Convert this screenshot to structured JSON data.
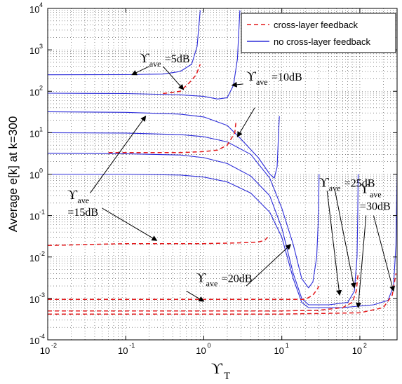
{
  "chart_data": {
    "type": "line",
    "xscale": "log",
    "yscale": "log",
    "xlim": [
      0.01,
      300
    ],
    "ylim": [
      0.0001,
      10000
    ],
    "grid": true,
    "legend_placement": "top-right",
    "xlabel": {
      "symbol": "ϒ",
      "sub": "T"
    },
    "ylabel": "Average e[k] at k=300",
    "x_ticks": [
      {
        "value": 0.01,
        "base": "10",
        "exp": "-2"
      },
      {
        "value": 0.1,
        "base": "10",
        "exp": "-1"
      },
      {
        "value": 1,
        "base": "10",
        "exp": "0"
      },
      {
        "value": 10,
        "base": "10",
        "exp": "1"
      },
      {
        "value": 100,
        "base": "10",
        "exp": "2"
      }
    ],
    "y_ticks": [
      {
        "value": 0.0001,
        "base": "10",
        "exp": "-4"
      },
      {
        "value": 0.001,
        "base": "10",
        "exp": "-3"
      },
      {
        "value": 0.01,
        "base": "10",
        "exp": "-2"
      },
      {
        "value": 0.1,
        "base": "10",
        "exp": "-1"
      },
      {
        "value": 1,
        "base": "10",
        "exp": "0"
      },
      {
        "value": 10,
        "base": "10",
        "exp": "1"
      },
      {
        "value": 100,
        "base": "10",
        "exp": "2"
      },
      {
        "value": 1000,
        "base": "10",
        "exp": "3"
      },
      {
        "value": 10000,
        "base": "10",
        "exp": "4"
      }
    ],
    "legend": [
      {
        "name": "cross-layer feedback",
        "style": "dashed",
        "color": "#e31a1c"
      },
      {
        "name": "no cross-layer feedback",
        "style": "solid",
        "color": "#2b2bd9"
      }
    ],
    "series": [
      {
        "name": "no cross-layer feedback",
        "group": "5dB",
        "color": "#2b2bd9",
        "style": "solid",
        "points": [
          [
            0.01,
            250
          ],
          [
            0.1,
            252
          ],
          [
            0.3,
            260
          ],
          [
            0.5,
            300
          ],
          [
            0.7,
            450
          ],
          [
            0.82,
            1200
          ],
          [
            0.9,
            9000
          ]
        ]
      },
      {
        "name": "no cross-layer feedback",
        "group": "10dB",
        "color": "#2b2bd9",
        "style": "solid",
        "points": [
          [
            0.01,
            90
          ],
          [
            0.1,
            88
          ],
          [
            0.5,
            82
          ],
          [
            1,
            75
          ],
          [
            1.5,
            65
          ],
          [
            2,
            70
          ],
          [
            2.4,
            140
          ],
          [
            2.7,
            600
          ],
          [
            2.9,
            9000
          ]
        ]
      },
      {
        "name": "no cross-layer feedback",
        "group": "15dB",
        "color": "#2b2bd9",
        "style": "solid",
        "points": [
          [
            0.01,
            32
          ],
          [
            0.1,
            31
          ],
          [
            0.5,
            28
          ],
          [
            1,
            24
          ],
          [
            2,
            15
          ],
          [
            3,
            7
          ],
          [
            5,
            2.5
          ],
          [
            7,
            1
          ],
          [
            8,
            0.8
          ],
          [
            8.7,
            1.5
          ],
          [
            9.1,
            10
          ],
          [
            9.3,
            25
          ]
        ]
      },
      {
        "name": "no cross-layer feedback",
        "group": "20dB",
        "color": "#2b2bd9",
        "style": "solid",
        "points": [
          [
            0.01,
            10
          ],
          [
            0.1,
            9.8
          ],
          [
            0.5,
            9
          ],
          [
            1,
            8
          ],
          [
            2,
            6
          ],
          [
            4,
            3
          ],
          [
            7,
            0.8
          ],
          [
            10,
            0.15
          ],
          [
            14,
            0.02
          ],
          [
            18,
            0.003
          ],
          [
            22,
            0.0018
          ],
          [
            25,
            0.0025
          ],
          [
            28,
            0.01
          ],
          [
            29.5,
            0.1
          ],
          [
            30,
            1
          ]
        ]
      },
      {
        "name": "no cross-layer feedback",
        "group": "25dB",
        "color": "#2b2bd9",
        "style": "solid",
        "points": [
          [
            0.01,
            3.2
          ],
          [
            0.1,
            3.1
          ],
          [
            0.5,
            2.9
          ],
          [
            1,
            2.5
          ],
          [
            2,
            1.8
          ],
          [
            4,
            0.9
          ],
          [
            7,
            0.3
          ],
          [
            10,
            0.05
          ],
          [
            14,
            0.004
          ],
          [
            18,
            0.001
          ],
          [
            22,
            0.0007
          ],
          [
            40,
            0.0007
          ],
          [
            70,
            0.0008
          ],
          [
            85,
            0.0015
          ],
          [
            92,
            0.01
          ],
          [
            94,
            0.1
          ],
          [
            95,
            1
          ]
        ]
      },
      {
        "name": "no cross-layer feedback",
        "group": "30dB",
        "color": "#2b2bd9",
        "style": "solid",
        "points": [
          [
            0.01,
            1
          ],
          [
            0.1,
            1
          ],
          [
            0.5,
            0.95
          ],
          [
            1,
            0.85
          ],
          [
            2,
            0.65
          ],
          [
            4,
            0.35
          ],
          [
            7,
            0.12
          ],
          [
            10,
            0.03
          ],
          [
            14,
            0.003
          ],
          [
            18,
            0.0008
          ],
          [
            22,
            0.0006
          ],
          [
            60,
            0.0006
          ],
          [
            150,
            0.0007
          ],
          [
            230,
            0.0009
          ],
          [
            270,
            0.002
          ],
          [
            290,
            0.02
          ],
          [
            300,
            1
          ]
        ]
      },
      {
        "name": "cross-layer feedback",
        "group": "5dB",
        "color": "#e31a1c",
        "style": "dashed",
        "points": [
          [
            0.3,
            88
          ],
          [
            0.5,
            100
          ],
          [
            0.65,
            160
          ],
          [
            0.8,
            250
          ],
          [
            0.9,
            450
          ]
        ]
      },
      {
        "name": "cross-layer feedback",
        "group": "15dB",
        "color": "#e31a1c",
        "style": "dashed",
        "points": [
          [
            0.06,
            3.3
          ],
          [
            0.3,
            3.3
          ],
          [
            0.5,
            3.3
          ],
          [
            1,
            3.5
          ],
          [
            1.5,
            3.8
          ],
          [
            2,
            5
          ],
          [
            2.5,
            10
          ],
          [
            2.6,
            20
          ]
        ]
      },
      {
        "name": "cross-layer feedback",
        "group": "20dB",
        "color": "#e31a1c",
        "style": "dashed",
        "points": [
          [
            0.01,
            0.019
          ],
          [
            0.1,
            0.021
          ],
          [
            1,
            0.021
          ],
          [
            3,
            0.022
          ],
          [
            5,
            0.023
          ],
          [
            6,
            0.025
          ],
          [
            6.6,
            0.03
          ]
        ]
      },
      {
        "name": "cross-layer feedback",
        "group": "25dB",
        "color": "#e31a1c",
        "style": "dashed",
        "points": [
          [
            0.01,
            0.00095
          ],
          [
            0.1,
            0.00095
          ],
          [
            1,
            0.00095
          ],
          [
            10,
            0.00095
          ],
          [
            20,
            0.00095
          ],
          [
            25,
            0.0012
          ],
          [
            28,
            0.0016
          ],
          [
            30,
            0.002
          ]
        ]
      },
      {
        "name": "cross-layer feedback",
        "group": "30dB",
        "color": "#e31a1c",
        "style": "dashed",
        "points": [
          [
            0.01,
            0.0005
          ],
          [
            1,
            0.0005
          ],
          [
            10,
            0.0005
          ],
          [
            30,
            0.00052
          ],
          [
            60,
            0.0006
          ],
          [
            80,
            0.0008
          ],
          [
            90,
            0.0015
          ],
          [
            95,
            0.004
          ]
        ]
      },
      {
        "name": "cross-layer feedback",
        "group": "30dB-b",
        "color": "#e31a1c",
        "style": "dashed",
        "points": [
          [
            0.01,
            0.00042
          ],
          [
            1,
            0.00042
          ],
          [
            10,
            0.00042
          ],
          [
            100,
            0.00045
          ],
          [
            200,
            0.0006
          ],
          [
            260,
            0.0012
          ],
          [
            290,
            0.004
          ]
        ]
      }
    ],
    "annotations": [
      {
        "sym": "ϒ",
        "sub": "ave",
        "text": "=5dB",
        "pos": [
          0.15,
          500
        ],
        "arrows": [
          [
            [
              0.2,
              400
            ],
            [
              0.12,
              250
            ]
          ],
          [
            [
              0.3,
              400
            ],
            [
              0.55,
              110
            ]
          ]
        ]
      },
      {
        "sym": "ϒ",
        "sub": "ave",
        "text": "=10dB",
        "pos": [
          3.5,
          180
        ],
        "arrows": [
          [
            [
              3.2,
              150
            ],
            [
              2.3,
              140
            ]
          ],
          [
            [
              4.5,
              40
            ],
            [
              2.7,
              8
            ]
          ]
        ]
      },
      {
        "sym": "ϒ",
        "sub": "ave",
        "text": "",
        "text2": "=15dB",
        "pos": [
          0.018,
          0.25
        ],
        "arrows": [
          [
            [
              0.035,
              0.35
            ],
            [
              0.18,
              25
            ]
          ],
          [
            [
              0.05,
              0.15
            ],
            [
              0.25,
              0.025
            ]
          ]
        ]
      },
      {
        "sym": "ϒ",
        "sub": "ave",
        "text": "=20dB",
        "pos": [
          0.8,
          0.0025
        ],
        "arrows": [
          [
            [
              0.6,
              0.0015
            ],
            [
              1,
              0.00085
            ]
          ],
          [
            [
              3.5,
              0.002
            ],
            [
              13,
              0.02
            ]
          ]
        ]
      },
      {
        "sym": "ϒ",
        "sub": "ave",
        "text": "=25dB",
        "pos": [
          30,
          0.5
        ],
        "arrows": [
          [
            [
              38,
              0.4
            ],
            [
              55,
              0.0012
            ]
          ],
          [
            [
              48,
              0.4
            ],
            [
              85,
              0.0018
            ]
          ]
        ]
      },
      {
        "sym": "ϒ",
        "sub": "ave",
        "text": "",
        "text2": "=30dB",
        "pos": [
          100,
          0.35
        ],
        "arrows": [
          [
            [
              120,
              0.1
            ],
            [
              95,
              0.0006
            ]
          ],
          [
            [
              150,
              0.1
            ],
            [
              270,
              0.0015
            ]
          ]
        ]
      }
    ]
  }
}
